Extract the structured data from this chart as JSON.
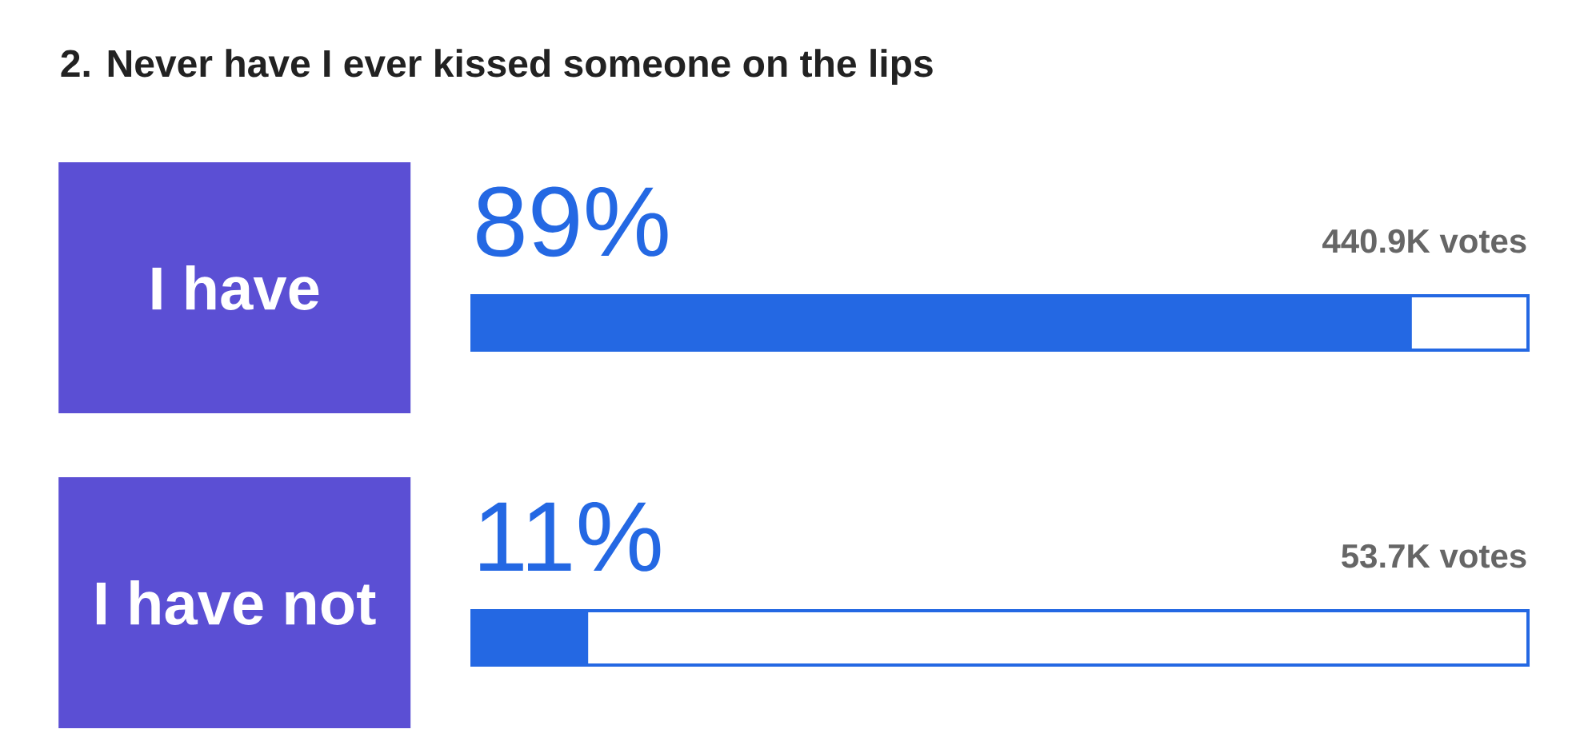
{
  "chart_data": {
    "type": "bar",
    "orientation": "horizontal",
    "title": "2. Never have I ever kissed someone on the lips",
    "categories": [
      "I have",
      "I have not"
    ],
    "series": [
      {
        "color": "#2468e3",
        "values": [
          89,
          11
        ],
        "value_labels": [
          "89%",
          "11%"
        ]
      }
    ],
    "xlim": [
      0,
      100
    ],
    "annotations": [
      "440.9K votes",
      "53.7K votes"
    ]
  }
}
